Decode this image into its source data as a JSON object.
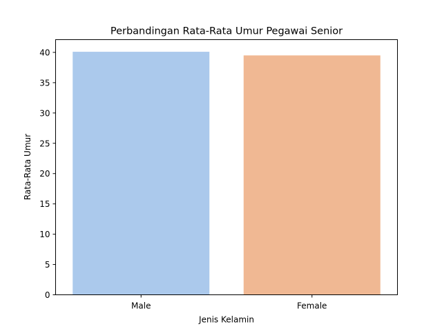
{
  "chart_data": {
    "type": "bar",
    "title": "Perbandingan Rata-Rata Umur Pegawai Senior",
    "xlabel": "Jenis Kelamin",
    "ylabel": "Rata-Rata Umur",
    "categories": [
      "Male",
      "Female"
    ],
    "values": [
      40.1,
      39.5
    ],
    "colors": [
      "#abc9ec",
      "#f0b893"
    ],
    "ylim": [
      0,
      42.1
    ],
    "yticks": [
      0,
      5,
      10,
      15,
      20,
      25,
      30,
      35,
      40
    ],
    "grid": false,
    "legend": "none"
  }
}
